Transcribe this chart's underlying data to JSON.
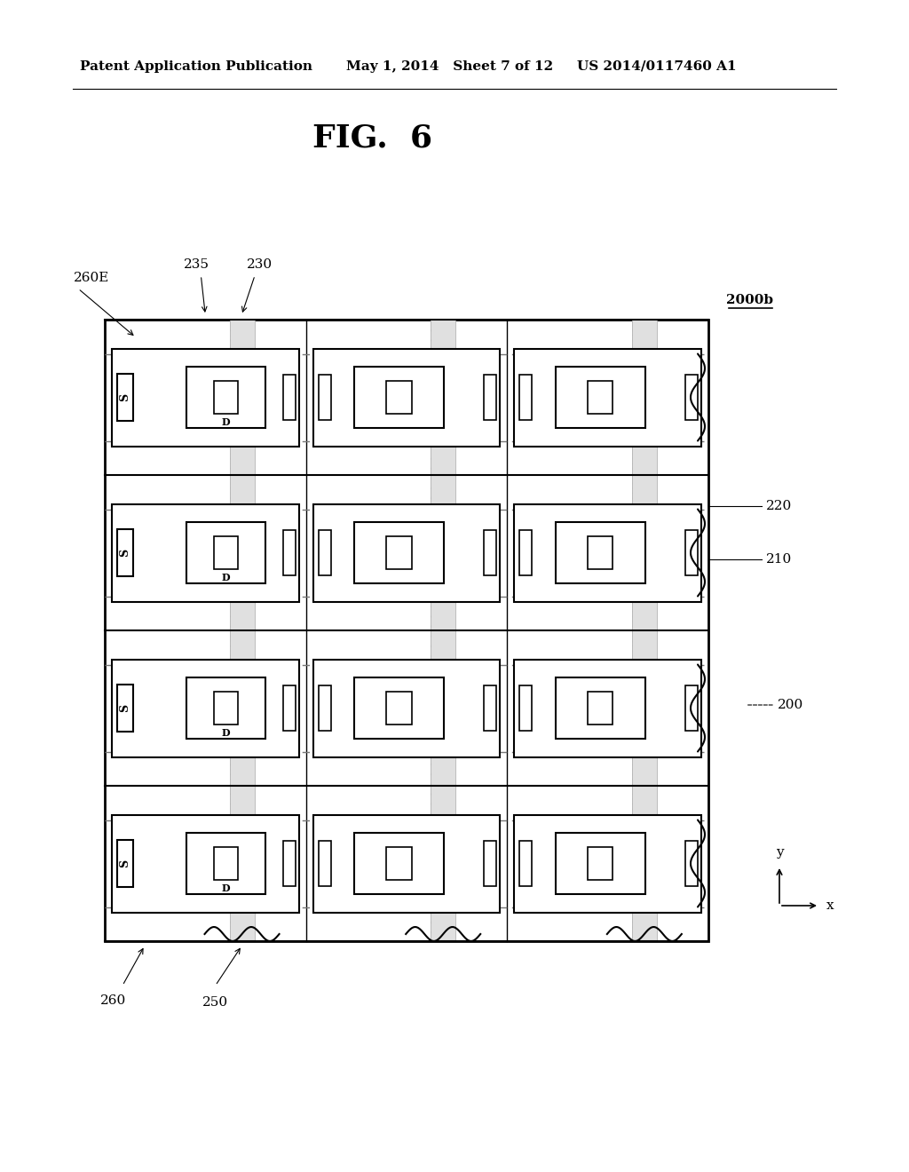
{
  "header_left": "Patent Application Publication",
  "header_mid": "May 1, 2014   Sheet 7 of 12",
  "header_right": "US 2014/0117460 A1",
  "fig_label": "FIG.  6",
  "label_2000b": "2000b",
  "label_220": "220",
  "label_210": "210",
  "label_200": "200",
  "label_235": "235",
  "label_230": "230",
  "label_260E": "260E",
  "label_260": "260",
  "label_250": "250",
  "bg_color": "#ffffff",
  "diagram_border_color": "#000000",
  "cell_border_color": "#000000",
  "hatch_color": "#cccccc",
  "dashed_line_color": "#888888",
  "num_rows": 4,
  "num_cols": 3
}
